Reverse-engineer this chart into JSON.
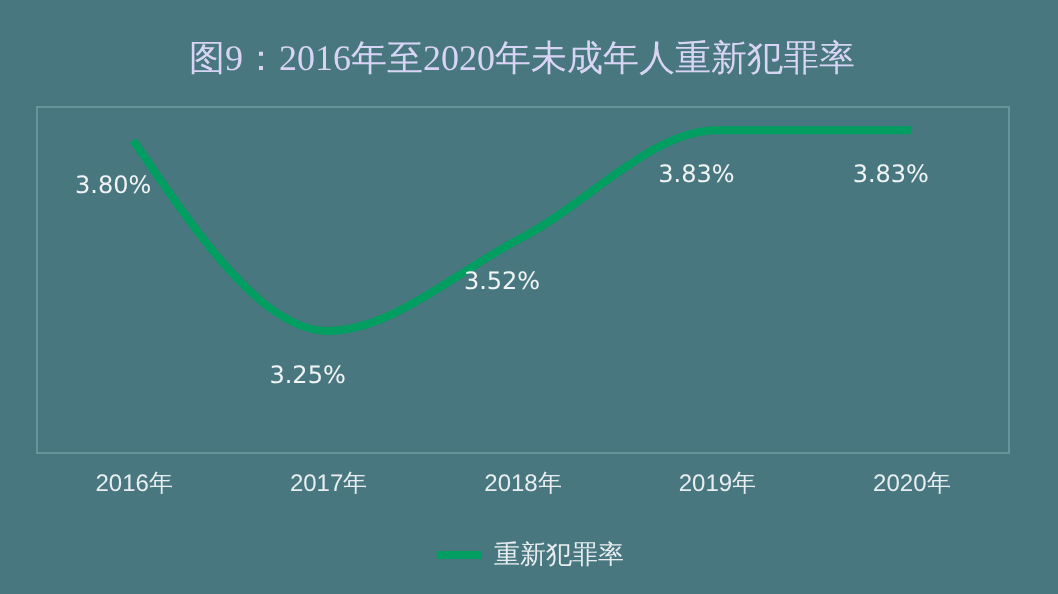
{
  "chart_data": {
    "type": "line",
    "title": "图9：2016年至2020年未成年人重新犯罪率",
    "categories": [
      "2016年",
      "2017年",
      "2018年",
      "2019年",
      "2020年"
    ],
    "series": [
      {
        "name": "重新犯罪率",
        "color": "#009e60",
        "values": [
          3.8,
          3.25,
          3.52,
          3.83,
          3.83
        ],
        "value_labels": [
          "3.80%",
          "3.25%",
          "3.52%",
          "3.83%",
          "3.83%"
        ]
      }
    ],
    "ylim": [
      2.9,
      3.9
    ],
    "tick_labels": "x",
    "legend": "bottom",
    "marker": "none",
    "line_style": "solid"
  }
}
